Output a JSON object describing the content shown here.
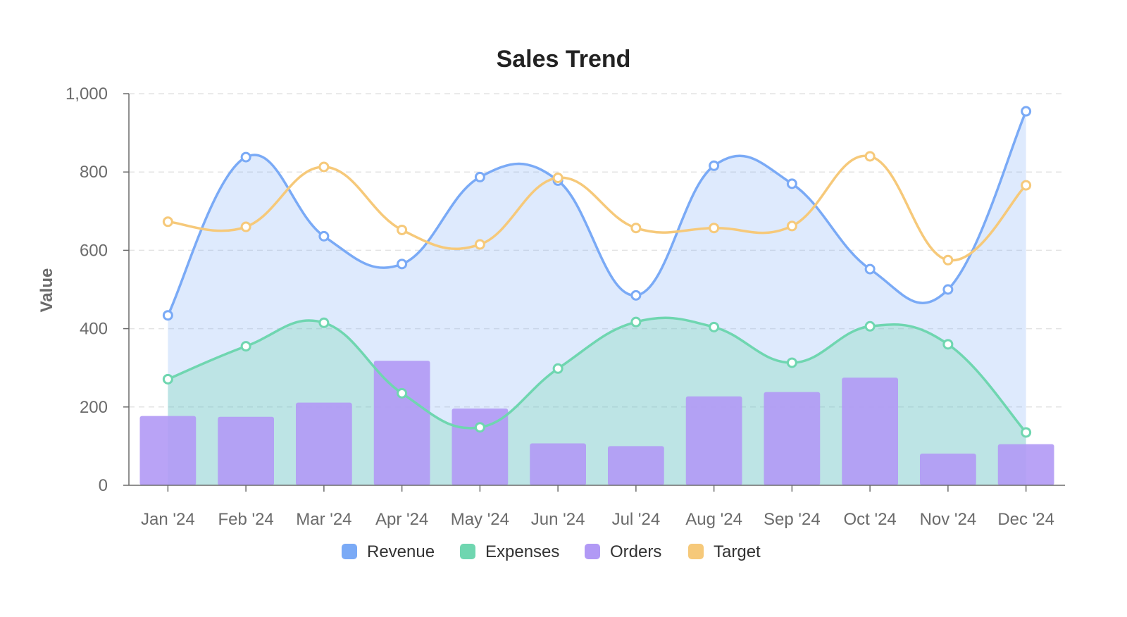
{
  "chart_data": {
    "type": "line",
    "title": "Sales Trend",
    "xlabel": "",
    "ylabel": "Value",
    "ylim": [
      0,
      1000
    ],
    "yticks": [
      0,
      200,
      400,
      600,
      800,
      1000
    ],
    "ytick_labels": [
      "0",
      "200",
      "400",
      "600",
      "800",
      "1,000"
    ],
    "categories": [
      "Jan '24",
      "Feb '24",
      "Mar '24",
      "Apr '24",
      "May '24",
      "Jun '24",
      "Jul '24",
      "Aug '24",
      "Sep '24",
      "Oct '24",
      "Nov '24",
      "Dec '24"
    ],
    "grid": "horizontal-dashed",
    "legend_position": "bottom",
    "series": [
      {
        "name": "Revenue",
        "kind": "area-line",
        "color": "#7aaaf6",
        "values": [
          434,
          838,
          636,
          565,
          787,
          778,
          485,
          816,
          770,
          552,
          500,
          955
        ]
      },
      {
        "name": "Expenses",
        "kind": "area-line",
        "color": "#6fd6b0",
        "values": [
          271,
          355,
          415,
          235,
          148,
          298,
          417,
          404,
          313,
          406,
          360,
          135
        ]
      },
      {
        "name": "Orders",
        "kind": "bar",
        "color": "#b199f5",
        "values": [
          177,
          175,
          211,
          318,
          196,
          107,
          100,
          227,
          238,
          275,
          81,
          105
        ]
      },
      {
        "name": "Target",
        "kind": "line",
        "color": "#f6c97a",
        "values": [
          673,
          660,
          813,
          652,
          615,
          785,
          657,
          657,
          662,
          840,
          575,
          766
        ]
      }
    ]
  }
}
